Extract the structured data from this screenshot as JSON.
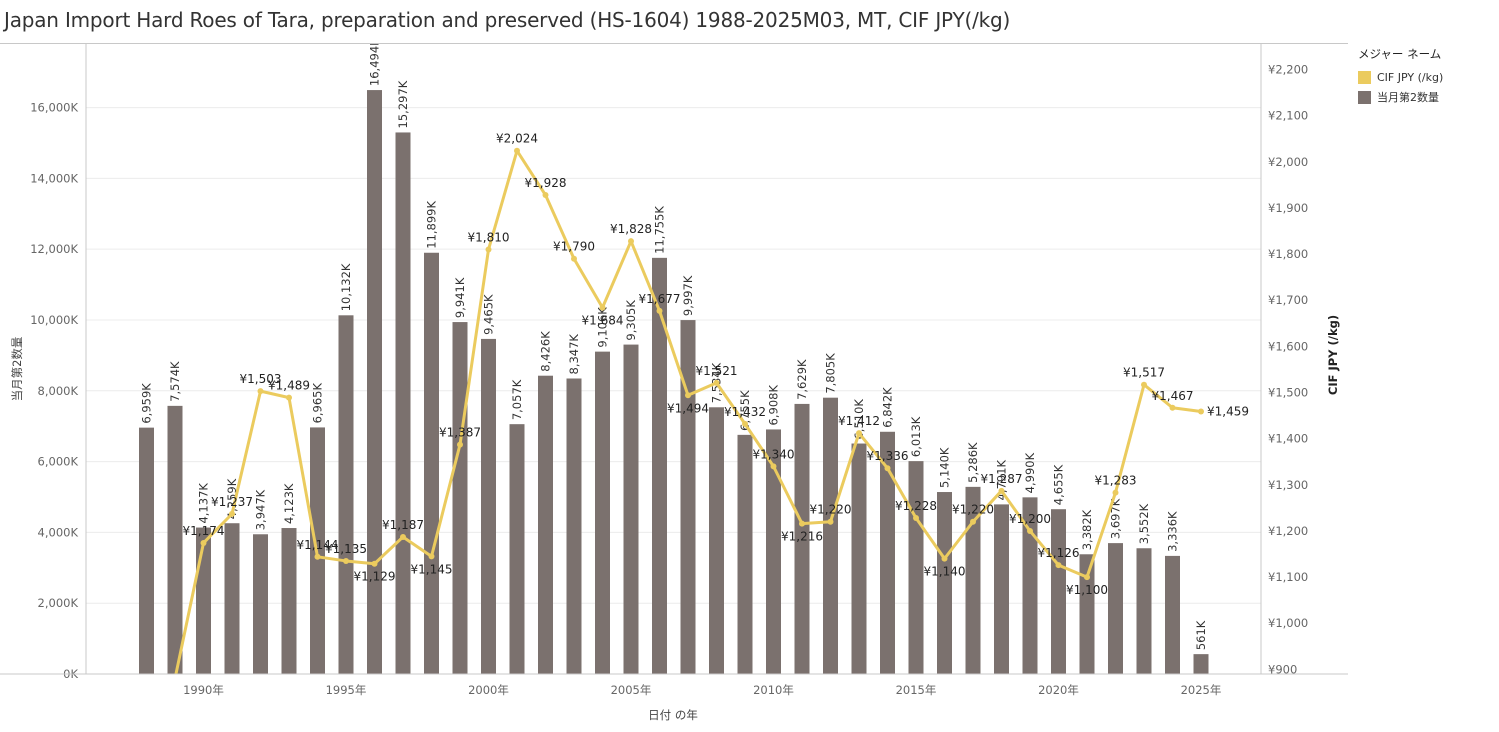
{
  "title": "Japan Import Hard Roes of Tara, preparation and preserved (HS-1604) 1988-2025M03, MT, CIF JPY(/kg)",
  "legend": {
    "title": "メジャー ネーム",
    "items": [
      {
        "label": "CIF JPY (/kg)",
        "color": "#ebcb5e"
      },
      {
        "label": "当月第2数量",
        "color": "#7b716e"
      }
    ]
  },
  "colors": {
    "bar": "#7b716e",
    "line": "#ebcb5e",
    "grid": "#ececec",
    "axis_text": "#666666"
  },
  "chart_data": {
    "type": "bar",
    "combo_with": "line",
    "xlabel": "日付 の年",
    "ylabel_left": "当月第2数量",
    "ylabel_right": "CIF JPY (/kg)",
    "ylim_left": [
      0,
      17400
    ],
    "ylim_right": [
      890,
      2225
    ],
    "left_ticks": [
      "0K",
      "2,000K",
      "4,000K",
      "6,000K",
      "8,000K",
      "10,000K",
      "12,000K",
      "14,000K",
      "16,000K"
    ],
    "left_tick_values": [
      0,
      2000,
      4000,
      6000,
      8000,
      10000,
      12000,
      14000,
      16000
    ],
    "right_ticks": [
      "¥900",
      "¥1,000",
      "¥1,100",
      "¥1,200",
      "¥1,300",
      "¥1,400",
      "¥1,500",
      "¥1,600",
      "¥1,700",
      "¥1,800",
      "¥1,900",
      "¥2,000",
      "¥2,100",
      "¥2,200"
    ],
    "right_tick_values": [
      900,
      1000,
      1100,
      1200,
      1300,
      1400,
      1500,
      1600,
      1700,
      1800,
      1900,
      2000,
      2100,
      2200
    ],
    "x_ticks": [
      "1990年",
      "1995年",
      "2000年",
      "2005年",
      "2010年",
      "2015年",
      "2020年",
      "2025年"
    ],
    "x_tick_years": [
      1990,
      1995,
      2000,
      2005,
      2010,
      2015,
      2020,
      2025
    ],
    "grid": true,
    "legend_position": "right",
    "series": [
      {
        "name": "当月第2数量",
        "type": "bar",
        "axis": "left",
        "years": [
          1988,
          1989,
          1990,
          1991,
          1992,
          1993,
          1994,
          1995,
          1996,
          1997,
          1998,
          1999,
          2000,
          2001,
          2002,
          2003,
          2004,
          2005,
          2006,
          2007,
          2008,
          2009,
          2010,
          2011,
          2012,
          2013,
          2014,
          2015,
          2016,
          2017,
          2018,
          2019,
          2020,
          2021,
          2022,
          2023,
          2024,
          2025
        ],
        "values": [
          6959,
          7574,
          4137,
          4259,
          3947,
          4123,
          6965,
          10132,
          16494,
          15297,
          11899,
          9941,
          9465,
          7057,
          8426,
          8347,
          9106,
          9305,
          11755,
          9997,
          7534,
          6755,
          6908,
          7629,
          7805,
          6510,
          6842,
          6013,
          5140,
          5286,
          4791,
          4990,
          4655,
          3382,
          3697,
          3552,
          3336,
          561
        ],
        "labels": [
          "6,959K",
          "7,574K",
          "4,137K",
          "4,259K",
          "3,947K",
          "4,123K",
          "6,965K",
          "10,132K",
          "16,494K",
          "15,297K",
          "11,899K",
          "9,941K",
          "9,465K",
          "7,057K",
          "8,426K",
          "8,347K",
          "9,106K",
          "9,305K",
          "11,755K",
          "9,997K",
          "7,534K",
          "6,755K",
          "6,908K",
          "7,629K",
          "7,805K",
          "6,510K",
          "6,842K",
          "6,013K",
          "5,140K",
          "5,286K",
          "4,791K",
          "4,990K",
          "4,655K",
          "3,382K",
          "3,697K",
          "3,552K",
          "3,336K",
          "561K"
        ]
      },
      {
        "name": "CIF JPY (/kg)",
        "type": "line",
        "axis": "right",
        "years": [
          1989,
          1990,
          1991,
          1992,
          1993,
          1994,
          1995,
          1996,
          1997,
          1998,
          1999,
          2000,
          2001,
          2002,
          2003,
          2004,
          2005,
          2006,
          2007,
          2008,
          2009,
          2010,
          2011,
          2012,
          2013,
          2014,
          2015,
          2016,
          2017,
          2018,
          2019,
          2020,
          2021,
          2022,
          2023,
          2024,
          2025
        ],
        "values": [
          880,
          1174,
          1237,
          1503,
          1489,
          1144,
          1135,
          1129,
          1187,
          1145,
          1387,
          1810,
          2024,
          1928,
          1790,
          1684,
          1828,
          1677,
          1494,
          1521,
          1432,
          1340,
          1216,
          1220,
          1412,
          1336,
          1228,
          1140,
          1220,
          1287,
          1200,
          1126,
          1100,
          1283,
          1517,
          1467,
          1459
        ],
        "labels": [
          "",
          "¥1,174",
          "¥1,237",
          "¥1,503",
          "¥1,489",
          "¥1,144",
          "¥1,135",
          "¥1,129",
          "¥1,187",
          "¥1,145",
          "¥1,387",
          "¥1,810",
          "¥2,024",
          "¥1,928",
          "¥1,790",
          "¥1,684",
          "¥1,828",
          "¥1,677",
          "¥1,494",
          "¥1,521",
          "¥1,432",
          "¥1,340",
          "¥1,216",
          "¥1,220",
          "¥1,412",
          "¥1,336",
          "¥1,228",
          "¥1,140",
          "¥1,220",
          "¥1,287",
          "¥1,200",
          "¥1,126",
          "¥1,100",
          "¥1,283",
          "¥1,517",
          "¥1,467",
          "¥1,459"
        ]
      }
    ]
  }
}
